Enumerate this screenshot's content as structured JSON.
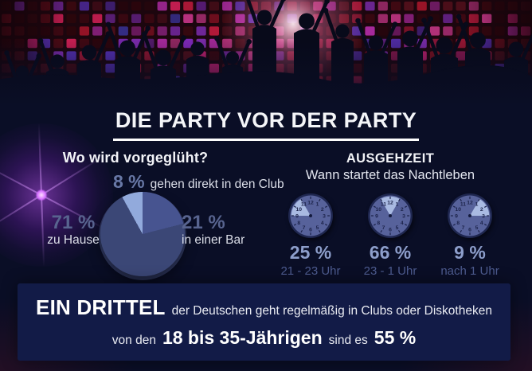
{
  "title": "DIE PARTY VOR DER PARTY",
  "header_image": "party-crowd-silhouette-disco-wall",
  "preglow": {
    "heading": "Wo wird vorgeglüht?",
    "slices": [
      {
        "value": "8 %",
        "label": "gehen direkt in den Club",
        "color": "#92aadc"
      },
      {
        "value": "21 %",
        "label": "in einer Bar",
        "color": "#475490"
      },
      {
        "value": "71 %",
        "label": "zu Hause",
        "color": "#3b4776"
      }
    ]
  },
  "ausgehzeit": {
    "heading": "AUSGEHZEIT",
    "subheading": "Wann startet das Nachtleben",
    "clocks": [
      {
        "percent": "25 %",
        "range": "21 - 23 Uhr",
        "wedge_from_hour": 9,
        "wedge_to_hour": 11
      },
      {
        "percent": "66 %",
        "range": "23 - 1 Uhr",
        "wedge_from_hour": 11,
        "wedge_to_hour": 1
      },
      {
        "percent": "9 %",
        "range": "nach 1 Uhr",
        "wedge_from_hour": 1,
        "wedge_to_hour": 3
      }
    ]
  },
  "banner": {
    "line1_highlight": "EIN DRITTEL",
    "line1_rest": "der Deutschen geht regelmäßig in Clubs oder Diskotheken",
    "line2_prefix": "von den",
    "line2_highlight": "18 bis 35-Jährigen",
    "line2_middle": "sind es",
    "line2_value": "55 %"
  },
  "colors": {
    "background": "#0a0e26",
    "banner_background": "#121b47",
    "pie_home": "#3b4776",
    "pie_bar": "#475490",
    "pie_direct": "#92aadc",
    "clock_face": "#57629b",
    "clock_wedge": "#b0c1e8",
    "percent_left": "#58648f",
    "percent_right": "#8d9ecb"
  },
  "chart_data": [
    {
      "type": "pie",
      "title": "Wo wird vorgeglüht?",
      "labels": [
        "zu Hause",
        "in einer Bar",
        "gehen direkt in den Club"
      ],
      "values": [
        71,
        21,
        8
      ],
      "unit": "%",
      "colors": [
        "#3b4776",
        "#475490",
        "#92aadc"
      ],
      "legend_position": "around-slices"
    },
    {
      "type": "pie",
      "title": "AUSGEHZEIT — Wann startet das Nachtleben",
      "labels": [
        "21 - 23 Uhr",
        "23 - 1 Uhr",
        "nach 1 Uhr"
      ],
      "values": [
        25,
        66,
        9
      ],
      "unit": "%",
      "representation": "clock-pictograms"
    },
    {
      "type": "table",
      "title": "Clubbesuch",
      "labels": [
        "Deutsche gesamt (regelmäßig in Clubs/Diskotheken)",
        "18 bis 35-Jährige"
      ],
      "values": [
        "ein Drittel",
        "55 %"
      ]
    }
  ]
}
